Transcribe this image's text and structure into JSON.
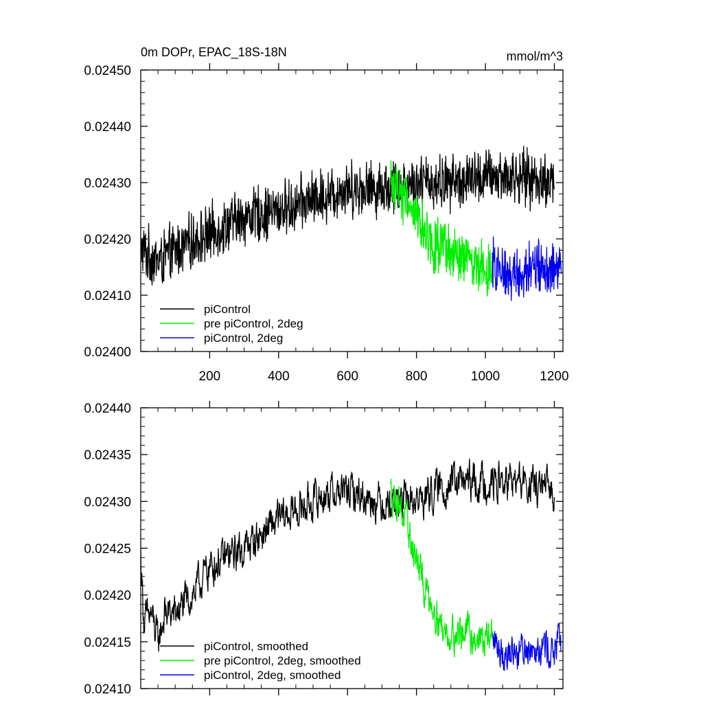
{
  "chart_data": [
    {
      "type": "line",
      "title": "0m DOPr, EPAC_18S-18N",
      "units": "mmol/m^3",
      "xlim": [
        0,
        1225
      ],
      "ylim": [
        0.024,
        0.0245
      ],
      "xticks": [
        200,
        400,
        600,
        800,
        1000,
        1200
      ],
      "xtick_labels": [
        "200",
        "400",
        "600",
        "800",
        "1000",
        "1200"
      ],
      "yticks": [
        0.024,
        0.0241,
        0.0242,
        0.0243,
        0.0244,
        0.0245
      ],
      "ytick_labels": [
        "0.02400",
        "0.02410",
        "0.02420",
        "0.02430",
        "0.02440",
        "0.02450"
      ],
      "legend_position": "bottom-left",
      "series": [
        {
          "name": "piControl",
          "color": "#000000",
          "x": [
            0,
            50,
            100,
            200,
            300,
            400,
            500,
            600,
            700,
            800,
            900,
            1000,
            1100,
            1200
          ],
          "y": [
            0.02418,
            0.02416,
            0.02418,
            0.02421,
            0.02424,
            0.02425,
            0.02427,
            0.02429,
            0.02429,
            0.0243,
            0.0243,
            0.02431,
            0.02431,
            0.0243
          ],
          "noise": 4e-05
        },
        {
          "name": "pre piControl, 2deg",
          "color": "#00ee00",
          "x": [
            725,
            750,
            800,
            850,
            900,
            950,
            1000,
            1020
          ],
          "y": [
            0.0243,
            0.02429,
            0.02424,
            0.02419,
            0.02417,
            0.02416,
            0.02415,
            0.02415
          ],
          "noise": 4e-05
        },
        {
          "name": "piControl, 2deg",
          "color": "#0000ee",
          "x": [
            1020,
            1050,
            1100,
            1150,
            1200,
            1220
          ],
          "y": [
            0.02415,
            0.02414,
            0.02414,
            0.02415,
            0.02414,
            0.02415
          ],
          "noise": 4e-05
        }
      ]
    },
    {
      "type": "line",
      "title": "",
      "units": "",
      "xlim": [
        0,
        1225
      ],
      "ylim": [
        0.0241,
        0.0244
      ],
      "xticks": [
        200,
        400,
        600,
        800,
        1000,
        1200
      ],
      "xtick_labels": [],
      "yticks": [
        0.0241,
        0.02415,
        0.0242,
        0.02425,
        0.0243,
        0.02435,
        0.0244
      ],
      "ytick_labels": [
        "0.02410",
        "0.02415",
        "0.02420",
        "0.02425",
        "0.02430",
        "0.02435",
        "0.02440"
      ],
      "legend_position": "bottom-left",
      "series": [
        {
          "name": "piControl, smoothed",
          "color": "#000000",
          "x": [
            0,
            10,
            30,
            50,
            70,
            100,
            150,
            200,
            300,
            400,
            500,
            550,
            600,
            700,
            800,
            900,
            1000,
            1100,
            1200
          ],
          "y": [
            0.02424,
            0.02417,
            0.02418,
            0.02415,
            0.02418,
            0.02418,
            0.0242,
            0.02423,
            0.02425,
            0.02428,
            0.0243,
            0.02431,
            0.02431,
            0.0243,
            0.0243,
            0.02432,
            0.02432,
            0.02432,
            0.02431
          ],
          "noise": 1.6e-05
        },
        {
          "name": "pre piControl, 2deg, smoothed",
          "color": "#00ee00",
          "x": [
            725,
            750,
            790,
            820,
            850,
            880,
            900,
            950,
            1000,
            1020
          ],
          "y": [
            0.02431,
            0.0243,
            0.02425,
            0.02421,
            0.02419,
            0.02416,
            0.02416,
            0.02416,
            0.02415,
            0.02416
          ],
          "noise": 1.6e-05
        },
        {
          "name": "piControl, 2deg, smoothed",
          "color": "#0000ee",
          "x": [
            1020,
            1050,
            1100,
            1150,
            1200,
            1220
          ],
          "y": [
            0.02415,
            0.02414,
            0.02414,
            0.02415,
            0.02414,
            0.02415
          ],
          "noise": 1.6e-05
        }
      ]
    }
  ]
}
